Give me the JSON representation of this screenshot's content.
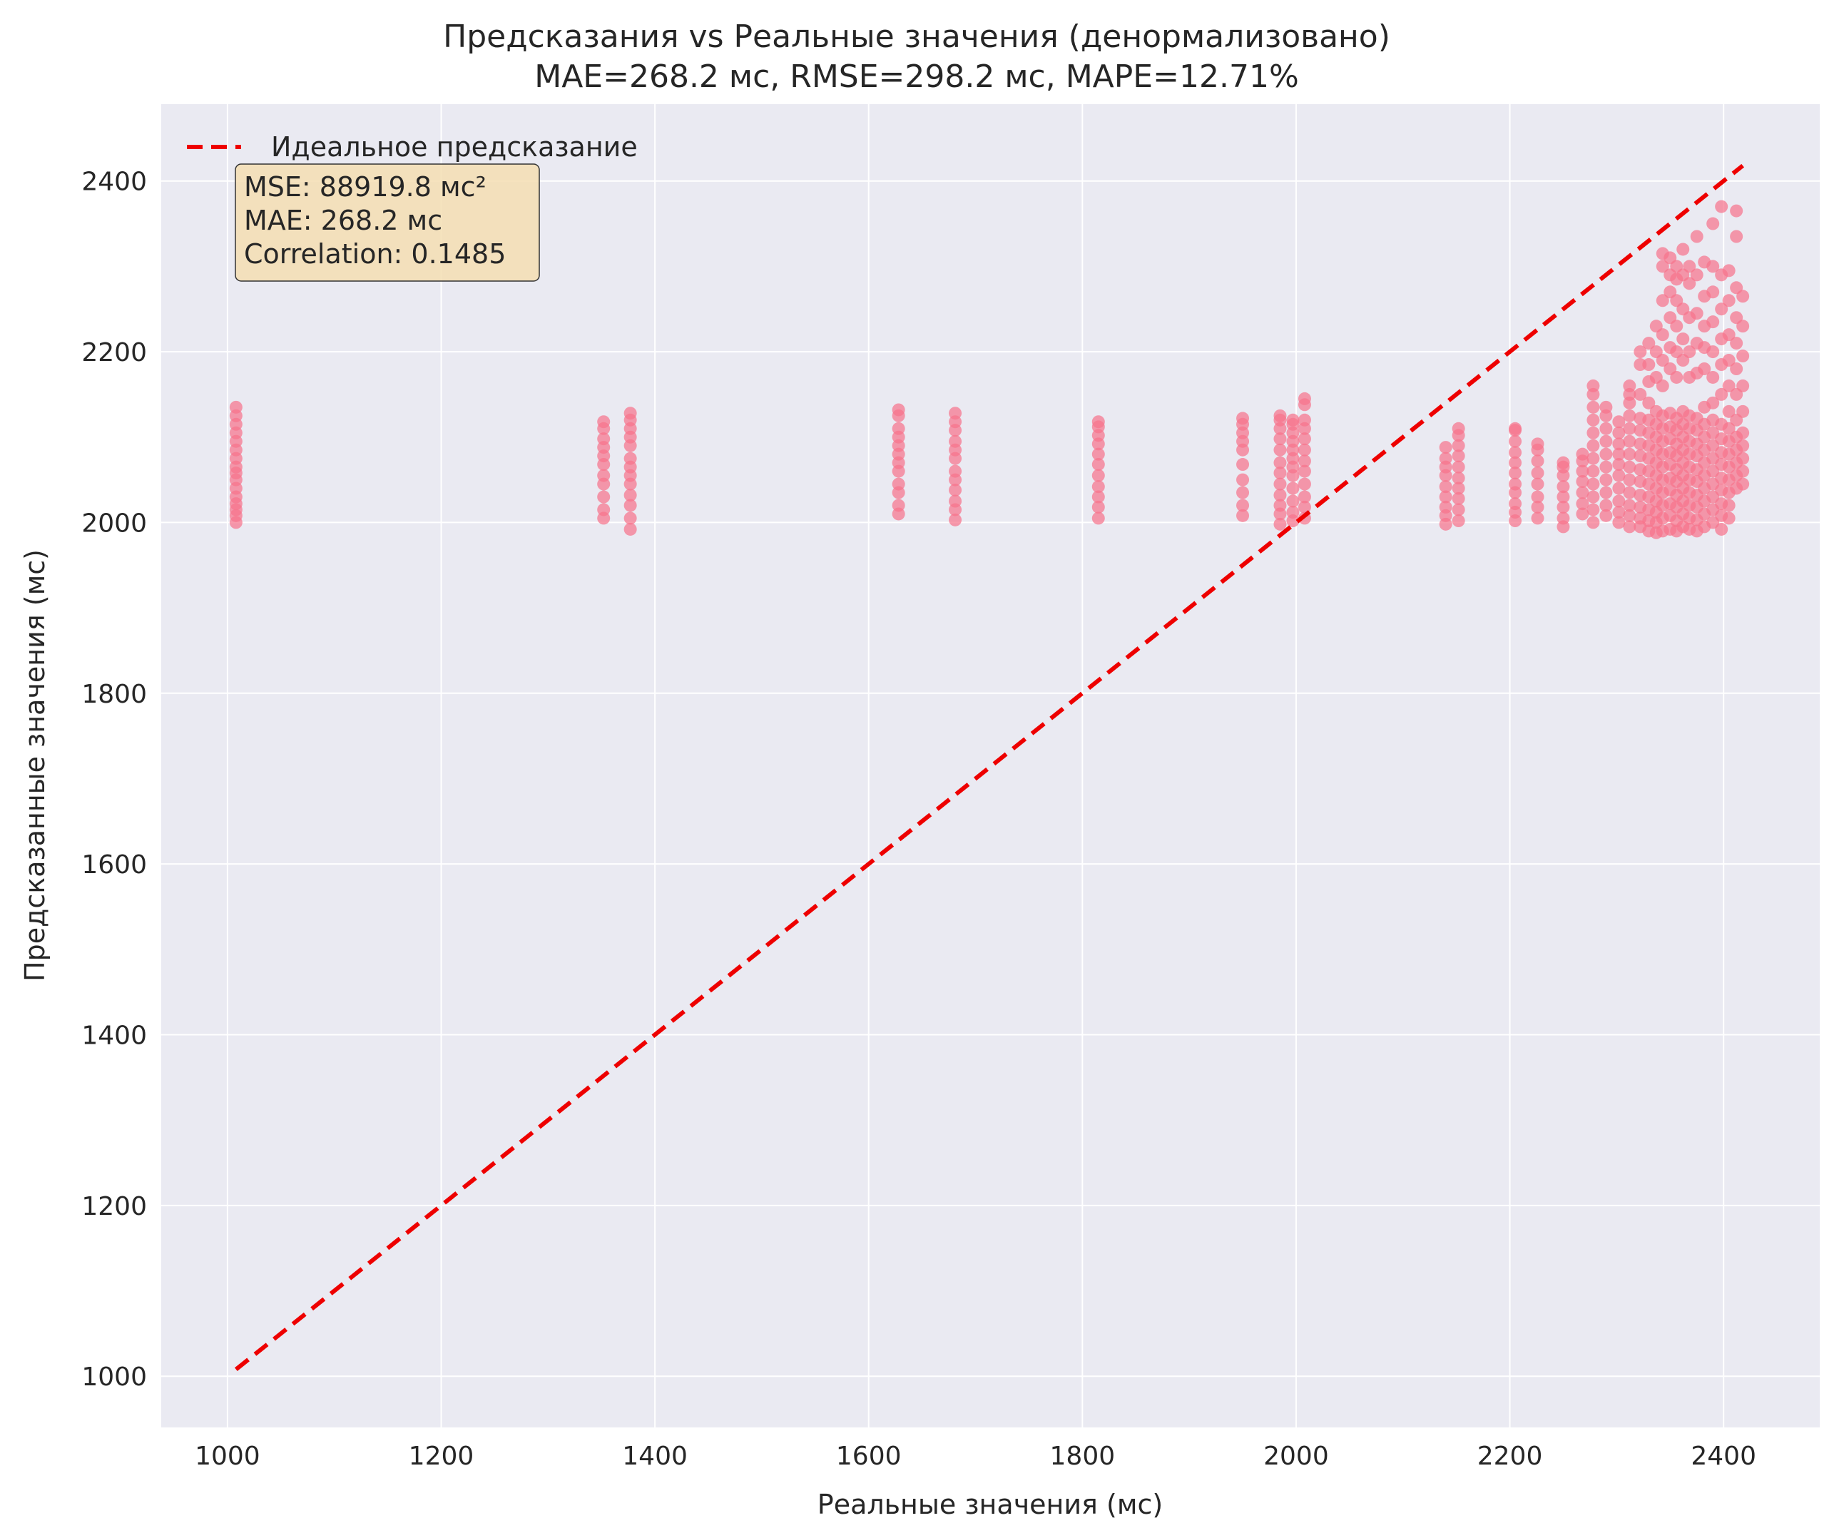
{
  "chart_data": {
    "type": "scatter",
    "title": "Предсказания vs Реальные значения (денормализовано)",
    "subtitle": "MAE=268.2 мс, RMSE=298.2 мс, MAPE=12.71%",
    "xlabel": "Реальные значения (мс)",
    "ylabel": "Предсказанные значения (мс)",
    "xlim": [
      938,
      2490
    ],
    "ylim": [
      940,
      2490
    ],
    "xticks": [
      "1000",
      "1200",
      "1400",
      "1600",
      "1800",
      "2000",
      "2200",
      "2400"
    ],
    "yticks": [
      "1000",
      "1200",
      "1400",
      "1600",
      "1800",
      "2000",
      "2200",
      "2400"
    ],
    "grid": true,
    "legend": {
      "placement": "top-left",
      "entries": [
        {
          "label": "Идеальное предсказание",
          "color": "#ee0000",
          "style": "dashed"
        }
      ]
    },
    "stats_box": {
      "lines": [
        "MSE: 88919.8 мс²",
        "MAE: 268.2 мс",
        "Correlation: 0.1485"
      ],
      "background": "#f5deb3"
    },
    "ideal_line": {
      "x": [
        1008,
        2418
      ],
      "y": [
        1008,
        2418
      ]
    },
    "scatter_color": "#f7748c",
    "clusters": [
      {
        "x": 1008,
        "y": [
          2000,
          2008,
          2015,
          2022,
          2030,
          2040,
          2050,
          2058,
          2065,
          2075,
          2085,
          2095,
          2105,
          2115,
          2125,
          2135
        ]
      },
      {
        "x": 1352,
        "y": [
          2005,
          2015,
          2030,
          2045,
          2055,
          2068,
          2078,
          2088,
          2098,
          2110,
          2118
        ]
      },
      {
        "x": 1377,
        "y": [
          1992,
          2005,
          2020,
          2032,
          2045,
          2055,
          2065,
          2075,
          2090,
          2100,
          2110,
          2120,
          2128
        ]
      },
      {
        "x": 1628,
        "y": [
          2010,
          2020,
          2035,
          2045,
          2060,
          2070,
          2080,
          2090,
          2100,
          2110,
          2125,
          2132
        ]
      },
      {
        "x": 1681,
        "y": [
          2003,
          2015,
          2025,
          2038,
          2050,
          2060,
          2075,
          2085,
          2095,
          2108,
          2118,
          2128
        ]
      },
      {
        "x": 1815,
        "y": [
          2005,
          2018,
          2030,
          2042,
          2055,
          2068,
          2080,
          2092,
          2102,
          2112,
          2118
        ]
      },
      {
        "x": 1950,
        "y": [
          2008,
          2020,
          2035,
          2050,
          2068,
          2085,
          2095,
          2105,
          2115,
          2122
        ]
      },
      {
        "x": 1985,
        "y": [
          1998,
          2010,
          2020,
          2032,
          2045,
          2058,
          2070,
          2085,
          2098,
          2110,
          2120,
          2125
        ]
      },
      {
        "x": 1997,
        "y": [
          2002,
          2012,
          2025,
          2040,
          2055,
          2065,
          2075,
          2085,
          2095,
          2105,
          2115,
          2120
        ]
      },
      {
        "x": 2008,
        "y": [
          2005,
          2018,
          2030,
          2045,
          2060,
          2072,
          2085,
          2098,
          2110,
          2120,
          2138,
          2145
        ]
      },
      {
        "x": 2140,
        "y": [
          1998,
          2008,
          2018,
          2030,
          2042,
          2055,
          2065,
          2075,
          2088
        ]
      },
      {
        "x": 2152,
        "y": [
          2002,
          2015,
          2028,
          2040,
          2052,
          2065,
          2078,
          2090,
          2102,
          2110
        ]
      },
      {
        "x": 2205,
        "y": [
          2002,
          2012,
          2022,
          2035,
          2045,
          2058,
          2070,
          2082,
          2095,
          2108,
          2110
        ]
      },
      {
        "x": 2226,
        "y": [
          2005,
          2018,
          2030,
          2045,
          2058,
          2072,
          2085,
          2092
        ]
      },
      {
        "x": 2250,
        "y": [
          1995,
          2005,
          2018,
          2030,
          2042,
          2055,
          2065,
          2070
        ]
      },
      {
        "x": 2268,
        "y": [
          2010,
          2022,
          2035,
          2048,
          2060,
          2072,
          2080
        ]
      },
      {
        "x": 2278,
        "y": [
          2000,
          2015,
          2030,
          2045,
          2060,
          2075,
          2090,
          2105,
          2120,
          2135,
          2150,
          2160
        ]
      },
      {
        "x": 2290,
        "y": [
          2008,
          2020,
          2035,
          2050,
          2065,
          2080,
          2095,
          2110,
          2125,
          2135
        ]
      },
      {
        "x": 2302,
        "y": [
          2000,
          2012,
          2025,
          2040,
          2055,
          2068,
          2080,
          2092,
          2105,
          2118
        ]
      },
      {
        "x": 2312,
        "y": [
          1995,
          2008,
          2020,
          2035,
          2050,
          2065,
          2080,
          2095,
          2110,
          2125,
          2140,
          2150,
          2160
        ]
      },
      {
        "x": 2322,
        "y": [
          1995,
          2005,
          2018,
          2032,
          2048,
          2062,
          2078,
          2092,
          2108,
          2122,
          2150,
          2185,
          2200
        ]
      },
      {
        "x": 2330,
        "y": [
          1990,
          2002,
          2015,
          2030,
          2045,
          2060,
          2075,
          2090,
          2105,
          2120,
          2140,
          2165,
          2185,
          2210
        ]
      },
      {
        "x": 2337,
        "y": [
          1988,
          2000,
          2012,
          2025,
          2040,
          2055,
          2070,
          2085,
          2100,
          2115,
          2130,
          2170,
          2200,
          2230
        ]
      },
      {
        "x": 2343,
        "y": [
          1990,
          2005,
          2020,
          2035,
          2050,
          2065,
          2080,
          2095,
          2110,
          2125,
          2160,
          2190,
          2220,
          2260,
          2300,
          2315
        ]
      },
      {
        "x": 2350,
        "y": [
          1992,
          2008,
          2022,
          2038,
          2052,
          2068,
          2082,
          2098,
          2112,
          2128,
          2180,
          2205,
          2240,
          2270,
          2290,
          2310
        ]
      },
      {
        "x": 2356,
        "y": [
          1990,
          2002,
          2018,
          2032,
          2048,
          2062,
          2078,
          2092,
          2108,
          2122,
          2170,
          2200,
          2230,
          2260,
          2285,
          2300
        ]
      },
      {
        "x": 2362,
        "y": [
          1995,
          2010,
          2025,
          2040,
          2055,
          2070,
          2085,
          2100,
          2115,
          2130,
          2190,
          2215,
          2250,
          2290,
          2320
        ]
      },
      {
        "x": 2368,
        "y": [
          1992,
          2005,
          2020,
          2035,
          2050,
          2065,
          2080,
          2095,
          2110,
          2125,
          2170,
          2200,
          2240,
          2280,
          2300
        ]
      },
      {
        "x": 2375,
        "y": [
          1990,
          2003,
          2018,
          2032,
          2048,
          2062,
          2078,
          2092,
          2108,
          2122,
          2175,
          2210,
          2245,
          2290,
          2335
        ]
      },
      {
        "x": 2382,
        "y": [
          1995,
          2010,
          2025,
          2040,
          2055,
          2070,
          2085,
          2100,
          2115,
          2135,
          2180,
          2205,
          2230,
          2265,
          2305
        ]
      },
      {
        "x": 2390,
        "y": [
          2000,
          2015,
          2030,
          2045,
          2060,
          2075,
          2090,
          2105,
          2120,
          2140,
          2170,
          2200,
          2235,
          2270,
          2300,
          2350
        ]
      },
      {
        "x": 2398,
        "y": [
          1992,
          2008,
          2022,
          2038,
          2052,
          2068,
          2082,
          2098,
          2115,
          2150,
          2185,
          2215,
          2250,
          2290,
          2370
        ]
      },
      {
        "x": 2405,
        "y": [
          2005,
          2020,
          2035,
          2050,
          2065,
          2080,
          2095,
          2110,
          2130,
          2160,
          2190,
          2220,
          2260,
          2295
        ]
      },
      {
        "x": 2412,
        "y": [
          2040,
          2055,
          2070,
          2085,
          2100,
          2120,
          2150,
          2180,
          2210,
          2240,
          2275,
          2335,
          2365
        ]
      },
      {
        "x": 2418,
        "y": [
          2045,
          2060,
          2075,
          2090,
          2105,
          2130,
          2160,
          2195,
          2230,
          2265
        ]
      }
    ]
  }
}
